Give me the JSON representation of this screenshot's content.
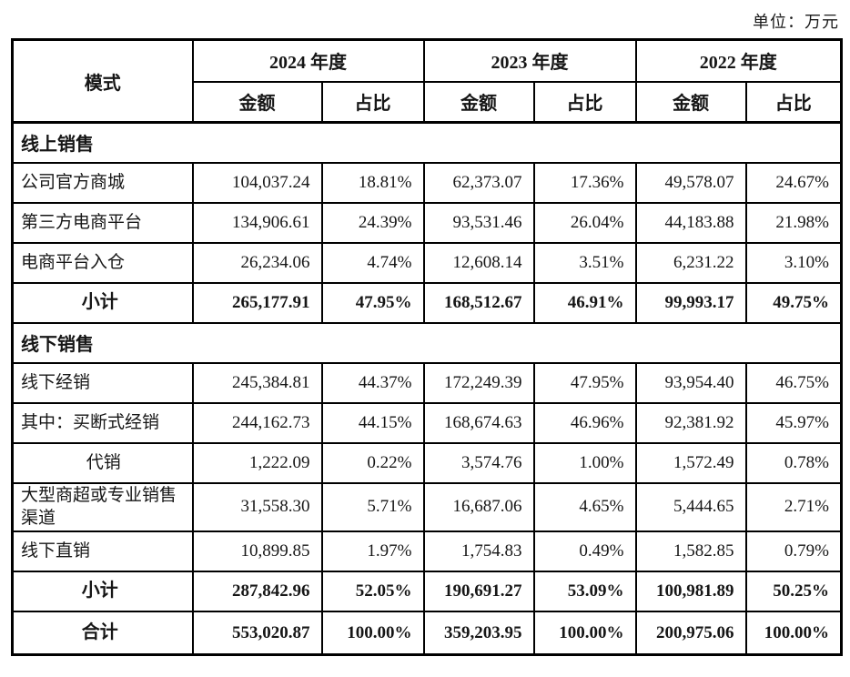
{
  "unit_label": "单位：万元",
  "table": {
    "mode_header": "模式",
    "years": [
      "2024 年度",
      "2023 年度",
      "2022 年度"
    ],
    "amount_header": "金额",
    "ratio_header": "占比",
    "rows": [
      {
        "kind": "section",
        "label": "线上销售",
        "values": []
      },
      {
        "kind": "data",
        "label": "公司官方商城",
        "values": [
          "104,037.24",
          "18.81%",
          "62,373.07",
          "17.36%",
          "49,578.07",
          "24.67%"
        ]
      },
      {
        "kind": "data",
        "label": "第三方电商平台",
        "values": [
          "134,906.61",
          "24.39%",
          "93,531.46",
          "26.04%",
          "44,183.88",
          "21.98%"
        ]
      },
      {
        "kind": "data",
        "label": "电商平台入仓",
        "values": [
          "26,234.06",
          "4.74%",
          "12,608.14",
          "3.51%",
          "6,231.22",
          "3.10%"
        ]
      },
      {
        "kind": "subtotal",
        "label": "小计",
        "values": [
          "265,177.91",
          "47.95%",
          "168,512.67",
          "46.91%",
          "99,993.17",
          "49.75%"
        ]
      },
      {
        "kind": "section",
        "label": "线下销售",
        "values": []
      },
      {
        "kind": "data",
        "label": "线下经销",
        "values": [
          "245,384.81",
          "44.37%",
          "172,249.39",
          "47.95%",
          "93,954.40",
          "46.75%"
        ]
      },
      {
        "kind": "data",
        "label": "其中：买断式经销",
        "values": [
          "244,162.73",
          "44.15%",
          "168,674.63",
          "46.96%",
          "92,381.92",
          "45.97%"
        ]
      },
      {
        "kind": "data-center",
        "label": "代销",
        "values": [
          "1,222.09",
          "0.22%",
          "3,574.76",
          "1.00%",
          "1,572.49",
          "0.78%"
        ]
      },
      {
        "kind": "data",
        "label": "大型商超或专业销售渠道",
        "values": [
          "31,558.30",
          "5.71%",
          "16,687.06",
          "4.65%",
          "5,444.65",
          "2.71%"
        ]
      },
      {
        "kind": "data",
        "label": "线下直销",
        "values": [
          "10,899.85",
          "1.97%",
          "1,754.83",
          "0.49%",
          "1,582.85",
          "0.79%"
        ]
      },
      {
        "kind": "subtotal",
        "label": "小计",
        "values": [
          "287,842.96",
          "52.05%",
          "190,691.27",
          "53.09%",
          "100,981.89",
          "50.25%"
        ]
      },
      {
        "kind": "grand",
        "label": "合计",
        "values": [
          "553,020.87",
          "100.00%",
          "359,203.95",
          "100.00%",
          "200,975.06",
          "100.00%"
        ]
      }
    ]
  }
}
